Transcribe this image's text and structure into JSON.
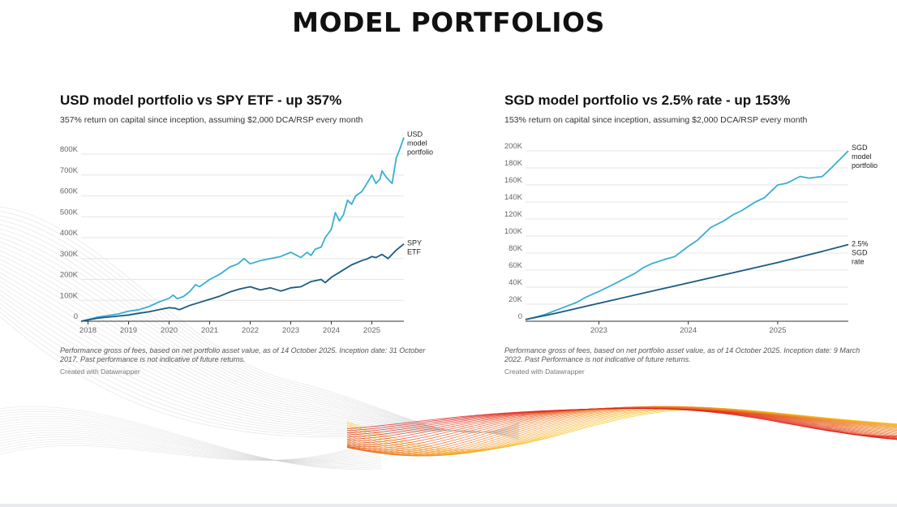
{
  "title": "MODEL PORTFOLIOS",
  "colors": {
    "light_blue": "#3aaed2",
    "dark_blue": "#1c5a82",
    "grid": "#e6e6e6"
  },
  "chart_data": [
    {
      "type": "line",
      "title": "USD model portfolio vs SPY ETF - up 357%",
      "subtitle": "357% return on capital since inception, assuming $2,000 DCA/RSP every month",
      "xlabel": "",
      "ylabel": "",
      "xlim": [
        2017.83,
        2025.79
      ],
      "ylim": [
        0,
        800000
      ],
      "x_ticks": [
        2018,
        2019,
        2020,
        2021,
        2022,
        2023,
        2024,
        2025
      ],
      "x_tick_labels": [
        "2018",
        "2019",
        "2020",
        "2021",
        "2022",
        "2023",
        "2024",
        "2025"
      ],
      "y_ticks": [
        0,
        100000,
        200000,
        300000,
        400000,
        500000,
        600000,
        700000,
        800000
      ],
      "y_tick_labels": [
        "0",
        "100K",
        "200K",
        "300K",
        "400K",
        "500K",
        "600K",
        "700K",
        "800K"
      ],
      "series": [
        {
          "name": "USD model portfolio",
          "label_lines": [
            "USD",
            "model",
            "portfolio"
          ],
          "color": "#3aaed2",
          "x": [
            2017.83,
            2018.25,
            2018.75,
            2019.0,
            2019.25,
            2019.5,
            2019.75,
            2020.0,
            2020.1,
            2020.2,
            2020.35,
            2020.5,
            2020.65,
            2020.75,
            2021.0,
            2021.25,
            2021.5,
            2021.7,
            2021.85,
            2022.0,
            2022.25,
            2022.5,
            2022.75,
            2023.0,
            2023.1,
            2023.25,
            2023.4,
            2023.5,
            2023.6,
            2023.75,
            2023.85,
            2024.0,
            2024.1,
            2024.2,
            2024.3,
            2024.4,
            2024.5,
            2024.6,
            2024.75,
            2024.85,
            2025.0,
            2025.1,
            2025.2,
            2025.25,
            2025.35,
            2025.5,
            2025.6,
            2025.7,
            2025.79
          ],
          "values": [
            0,
            20000,
            35000,
            48000,
            55000,
            70000,
            92000,
            110000,
            125000,
            108000,
            118000,
            140000,
            175000,
            165000,
            200000,
            225000,
            260000,
            275000,
            300000,
            275000,
            290000,
            300000,
            310000,
            330000,
            320000,
            305000,
            330000,
            315000,
            345000,
            355000,
            400000,
            440000,
            520000,
            480000,
            510000,
            580000,
            560000,
            600000,
            620000,
            650000,
            700000,
            660000,
            680000,
            720000,
            690000,
            660000,
            780000,
            830000,
            880000
          ]
        },
        {
          "name": "SPY ETF",
          "label_lines": [
            "SPY",
            "ETF"
          ],
          "color": "#1c5a82",
          "x": [
            2017.83,
            2018.25,
            2018.75,
            2019.0,
            2019.25,
            2019.5,
            2019.75,
            2020.0,
            2020.15,
            2020.25,
            2020.5,
            2020.75,
            2021.0,
            2021.25,
            2021.5,
            2021.75,
            2022.0,
            2022.25,
            2022.5,
            2022.75,
            2022.85,
            2023.0,
            2023.25,
            2023.5,
            2023.75,
            2023.85,
            2024.0,
            2024.25,
            2024.5,
            2024.75,
            2024.9,
            2025.0,
            2025.1,
            2025.25,
            2025.4,
            2025.6,
            2025.79
          ],
          "values": [
            0,
            15000,
            25000,
            30000,
            38000,
            45000,
            55000,
            65000,
            62000,
            55000,
            75000,
            90000,
            105000,
            120000,
            140000,
            155000,
            165000,
            150000,
            160000,
            145000,
            150000,
            160000,
            165000,
            190000,
            200000,
            185000,
            210000,
            240000,
            270000,
            290000,
            300000,
            310000,
            305000,
            320000,
            300000,
            340000,
            370000
          ]
        }
      ],
      "note": "Performance gross of fees, based on net portfolio asset value, as of 14 October 2025. Inception date: 31 October 2017. Past performance is not indicative of future returns.",
      "credit": "Created with Datawrapper"
    },
    {
      "type": "line",
      "title": "SGD model portfolio vs 2.5% rate - up 153%",
      "subtitle": "153% return on capital since inception, assuming $2,000 DCA/RSP every month",
      "xlabel": "",
      "ylabel": "",
      "xlim": [
        2022.18,
        2025.79
      ],
      "ylim": [
        0,
        200000
      ],
      "x_ticks": [
        2023,
        2024,
        2025
      ],
      "x_tick_labels": [
        "2023",
        "2024",
        "2025"
      ],
      "y_ticks": [
        0,
        20000,
        40000,
        60000,
        80000,
        100000,
        120000,
        140000,
        160000,
        180000,
        200000
      ],
      "y_tick_labels": [
        "0",
        "20K",
        "40K",
        "60K",
        "80K",
        "100K",
        "120K",
        "140K",
        "160K",
        "180K",
        "200K"
      ],
      "series": [
        {
          "name": "SGD model portfolio",
          "label_lines": [
            "SGD",
            "model",
            "portfolio"
          ],
          "color": "#3aaed2",
          "x": [
            2022.18,
            2022.3,
            2022.4,
            2022.5,
            2022.6,
            2022.75,
            2022.85,
            2023.0,
            2023.1,
            2023.25,
            2023.4,
            2023.5,
            2023.6,
            2023.75,
            2023.85,
            2024.0,
            2024.1,
            2024.25,
            2024.4,
            2024.5,
            2024.6,
            2024.75,
            2024.85,
            2025.0,
            2025.1,
            2025.25,
            2025.35,
            2025.5,
            2025.6,
            2025.79
          ],
          "values": [
            2000,
            5000,
            8000,
            12000,
            16000,
            22000,
            28000,
            35000,
            40000,
            48000,
            56000,
            63000,
            68000,
            73000,
            76000,
            88000,
            95000,
            110000,
            118000,
            125000,
            130000,
            140000,
            145000,
            160000,
            162000,
            170000,
            168000,
            170000,
            180000,
            200000
          ]
        },
        {
          "name": "2.5% SGD rate",
          "label_lines": [
            "2.5%",
            "SGD",
            "rate"
          ],
          "color": "#1c5a82",
          "x": [
            2022.18,
            2022.5,
            2023.0,
            2023.5,
            2024.0,
            2024.5,
            2025.0,
            2025.5,
            2025.79
          ],
          "values": [
            2000,
            9000,
            21000,
            33000,
            45000,
            57000,
            69000,
            82000,
            90000
          ]
        }
      ],
      "note": "Performance gross of fees, based on net portfolio asset value, as of 14 October 2025. Inception date: 9 March 2022. Past Performance is not indicative of future returns.",
      "credit": "Created with Datawrapper"
    }
  ]
}
